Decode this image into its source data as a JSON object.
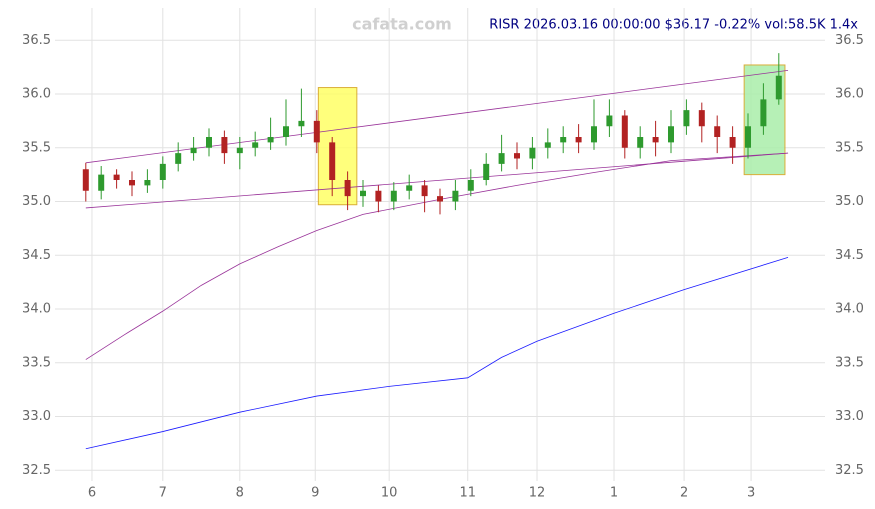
{
  "chart_data": {
    "type": "candlestick",
    "title": "RISR 2026.03.16 00:00:00 $36.17 -0.22% vol:58.5K 1.4x",
    "watermark": "cafata.com",
    "xlim": [
      0,
      100
    ],
    "ylim": [
      32.4,
      36.8
    ],
    "xticks": [
      {
        "value": 4.8,
        "label": "6"
      },
      {
        "value": 14,
        "label": "7"
      },
      {
        "value": 24,
        "label": "8"
      },
      {
        "value": 33.8,
        "label": "9"
      },
      {
        "value": 43.4,
        "label": "10"
      },
      {
        "value": 53.6,
        "label": "11"
      },
      {
        "value": 62.6,
        "label": "12"
      },
      {
        "value": 72.6,
        "label": "1"
      },
      {
        "value": 81.7,
        "label": "2"
      },
      {
        "value": 90.4,
        "label": "3"
      }
    ],
    "yticks": [
      32.5,
      {
        "value": 33,
        "label": "33.0"
      },
      33.5,
      {
        "value": 34,
        "label": "34.0"
      },
      34.5,
      {
        "value": 35,
        "label": "35.0"
      },
      35.5,
      {
        "value": 36,
        "label": "36.0"
      },
      36.5
    ],
    "grid": true,
    "up_color": "#2e9a2e",
    "down_color": "#b22222",
    "x": [
      4,
      6,
      8,
      10,
      12,
      14,
      16,
      18,
      20,
      22,
      24,
      26,
      28,
      30,
      32,
      34,
      36,
      38,
      40,
      42,
      44,
      46,
      48,
      50,
      52,
      54,
      56,
      58,
      60,
      62,
      64,
      66,
      68,
      70,
      72,
      74,
      76,
      78,
      80,
      82,
      84,
      86,
      88,
      90,
      92,
      94
    ],
    "open": [
      35.3,
      35.1,
      35.25,
      35.2,
      35.15,
      35.2,
      35.35,
      35.45,
      35.5,
      35.6,
      35.45,
      35.5,
      35.55,
      35.6,
      35.7,
      35.75,
      35.55,
      35.2,
      35.05,
      35.1,
      35.0,
      35.1,
      35.15,
      35.05,
      35.0,
      35.1,
      35.2,
      35.35,
      35.45,
      35.4,
      35.5,
      35.55,
      35.6,
      35.55,
      35.7,
      35.8,
      35.5,
      35.6,
      35.55,
      35.7,
      35.85,
      35.7,
      35.6,
      35.5,
      35.7,
      35.95
    ],
    "high": [
      35.36,
      35.33,
      35.3,
      35.28,
      35.3,
      35.42,
      35.55,
      35.6,
      35.68,
      35.66,
      35.6,
      35.65,
      35.78,
      35.95,
      36.05,
      35.85,
      35.6,
      35.28,
      35.2,
      35.15,
      35.18,
      35.25,
      35.2,
      35.12,
      35.2,
      35.3,
      35.45,
      35.62,
      35.55,
      35.6,
      35.68,
      35.7,
      35.72,
      35.95,
      35.95,
      35.85,
      35.7,
      35.75,
      35.85,
      35.95,
      35.92,
      35.8,
      35.7,
      35.82,
      36.1,
      36.38
    ],
    "low": [
      35.0,
      35.02,
      35.12,
      35.05,
      35.08,
      35.12,
      35.28,
      35.38,
      35.42,
      35.35,
      35.3,
      35.42,
      35.48,
      35.52,
      35.6,
      35.45,
      35.05,
      34.92,
      34.95,
      34.9,
      34.92,
      35.02,
      34.9,
      34.88,
      34.92,
      35.05,
      35.15,
      35.28,
      35.3,
      35.3,
      35.4,
      35.45,
      35.45,
      35.48,
      35.6,
      35.4,
      35.4,
      35.42,
      35.45,
      35.62,
      35.55,
      35.45,
      35.35,
      35.4,
      35.62,
      35.9
    ],
    "close": [
      35.1,
      35.25,
      35.2,
      35.15,
      35.2,
      35.35,
      35.45,
      35.5,
      35.6,
      35.45,
      35.5,
      35.55,
      35.6,
      35.7,
      35.75,
      35.55,
      35.2,
      35.05,
      35.1,
      35.0,
      35.1,
      35.15,
      35.05,
      35.0,
      35.1,
      35.2,
      35.35,
      35.45,
      35.4,
      35.5,
      35.55,
      35.6,
      35.55,
      35.7,
      35.8,
      35.5,
      35.6,
      35.55,
      35.7,
      35.85,
      35.7,
      35.6,
      35.5,
      35.7,
      35.95,
      36.17
    ],
    "lines": [
      {
        "color": "#1a1aff",
        "x": [
          4,
          14,
          24,
          34,
          43.4,
          53.6,
          58,
          62.6,
          72.6,
          81.7,
          95.2
        ],
        "values": [
          32.7,
          32.86,
          33.04,
          33.19,
          33.28,
          33.36,
          33.55,
          33.7,
          33.96,
          34.18,
          34.48
        ]
      },
      {
        "color": "#993399",
        "x": [
          4,
          9,
          14,
          19,
          24,
          29,
          34,
          40,
          50,
          60,
          70,
          80,
          95.2
        ],
        "values": [
          33.53,
          33.76,
          33.98,
          34.22,
          34.42,
          34.58,
          34.73,
          34.88,
          35.02,
          35.15,
          35.27,
          35.38,
          35.45
        ]
      },
      {
        "color": "#993399",
        "x": [
          4,
          95.2
        ],
        "values": [
          35.36,
          36.22
        ]
      },
      {
        "color": "#993399",
        "x": [
          4,
          95.2
        ],
        "values": [
          34.94,
          35.45
        ]
      }
    ],
    "zones": [
      {
        "x": [
          34.2,
          39.2
        ],
        "y": [
          34.97,
          36.06
        ],
        "color": "#ffff66"
      },
      {
        "x": [
          89.5,
          94.8
        ],
        "y": [
          35.25,
          36.27
        ],
        "color": "#aaeeaa"
      }
    ]
  }
}
